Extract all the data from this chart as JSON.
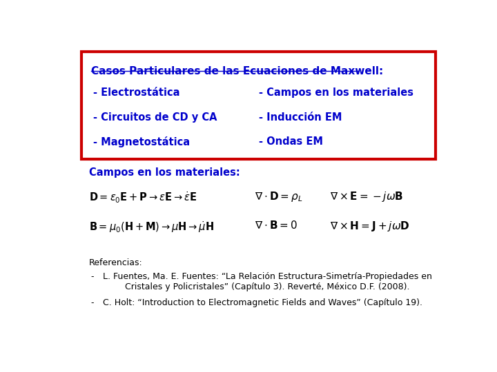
{
  "bg_color": "#ffffff",
  "box_color": "#cc0000",
  "title_color": "#0000cc",
  "body_color": "#0000cc",
  "black_color": "#000000",
  "box_title": "Casos Particulares de las Ecuaciones de Maxwell:",
  "box_items_left": [
    "- Electrostática",
    "- Circuitos de CD y CA",
    "- Magnetostática"
  ],
  "box_items_right": [
    "- Campos en los materiales",
    "- Inducción EM",
    "- Ondas EM"
  ],
  "section_title": "Campos en los materiales:",
  "ref_title": "Referencias:",
  "ref1": "L. Fuentes, Ma. E. Fuentes: “La Relación Estructura-Simetría-Propiedades en\n        Cristales y Policristales” (Capítulo 3). Reverté, México D.F. (2008).",
  "ref2": "C. Holt: “Introduction to Electromagnetic Fields and Waves” (Capítulo 19)."
}
